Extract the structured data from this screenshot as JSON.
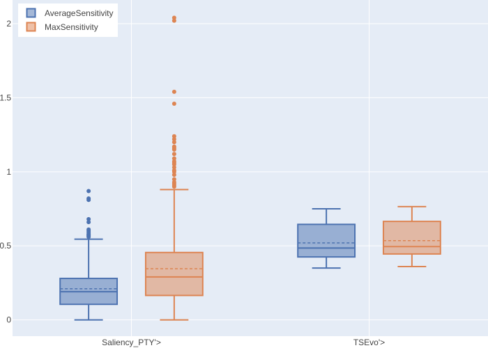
{
  "colors": {
    "plot_bg": "#e5ecf6",
    "grid": "#ffffff",
    "series": [
      "#4c72b0",
      "#dd8452"
    ],
    "series_fill": [
      "rgba(76,114,176,0.5)",
      "rgba(221,132,82,0.5)"
    ]
  },
  "chart_data": {
    "type": "box",
    "categories": [
      "Saliency_PTY'>",
      "TSEvo'>"
    ],
    "ylim": [
      -0.11,
      2.16
    ],
    "y_ticks": [
      0,
      0.5,
      1,
      1.5,
      2
    ],
    "y_tick_labels": [
      "0",
      "0.5",
      "1",
      "1.5",
      "2"
    ],
    "grid": true,
    "legend_position": "top-left",
    "series": [
      {
        "name": "AverageSensitivity",
        "boxes": [
          {
            "category": "Saliency_PTY'>",
            "min": 0.0,
            "q1": 0.105,
            "median": 0.19,
            "q3": 0.28,
            "max": 0.545,
            "mean": 0.21,
            "outliers": [
              0.87,
              0.82,
              0.81,
              0.68,
              0.66,
              0.61,
              0.6,
              0.59,
              0.58,
              0.575,
              0.57,
              0.565,
              0.56
            ]
          },
          {
            "category": "TSEvo'>",
            "min": 0.35,
            "q1": 0.425,
            "median": 0.485,
            "q3": 0.645,
            "max": 0.75,
            "mean": 0.52,
            "outliers": []
          }
        ]
      },
      {
        "name": "MaxSensitivity",
        "boxes": [
          {
            "category": "Saliency_PTY'>",
            "min": 0.0,
            "q1": 0.165,
            "median": 0.29,
            "q3": 0.455,
            "max": 0.88,
            "mean": 0.345,
            "outliers": [
              2.04,
              2.02,
              1.54,
              1.46,
              1.24,
              1.22,
              1.2,
              1.17,
              1.16,
              1.15,
              1.12,
              1.09,
              1.07,
              1.06,
              1.05,
              1.03,
              1.01,
              1.0,
              0.98,
              0.95,
              0.93,
              0.92,
              0.91,
              0.9
            ]
          },
          {
            "category": "TSEvo'>",
            "min": 0.36,
            "q1": 0.445,
            "median": 0.495,
            "q3": 0.665,
            "max": 0.765,
            "mean": 0.535,
            "outliers": []
          }
        ]
      }
    ]
  }
}
